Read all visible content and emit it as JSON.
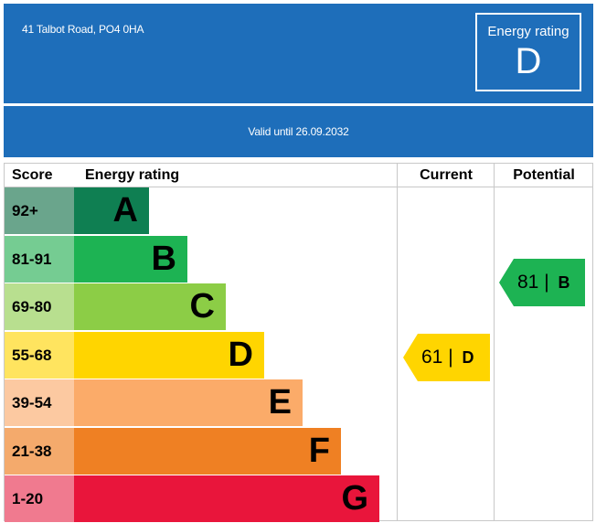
{
  "header": {
    "address": "41 Talbot Road, PO4 0HA",
    "rating_label": "Energy rating",
    "rating_value": "D",
    "valid_text": "Valid until 26.09.2032"
  },
  "table": {
    "col_score": "Score",
    "col_rating": "Energy rating",
    "col_current": "Current",
    "col_potential": "Potential"
  },
  "bands": [
    {
      "score": "92+",
      "letter": "A",
      "color": "#0f7f52",
      "score_bg": "#6aa58c"
    },
    {
      "score": "81-91",
      "letter": "B",
      "color": "#1db353",
      "score_bg": "#75cc92"
    },
    {
      "score": "69-80",
      "letter": "C",
      "color": "#8ccd46",
      "score_bg": "#b8df8f"
    },
    {
      "score": "55-68",
      "letter": "D",
      "color": "#ffd500",
      "score_bg": "#ffe45f"
    },
    {
      "score": "39-54",
      "letter": "E",
      "color": "#fbab69",
      "score_bg": "#fcc9a1"
    },
    {
      "score": "21-38",
      "letter": "F",
      "color": "#ef8023",
      "score_bg": "#f4aa6c"
    },
    {
      "score": "1-20",
      "letter": "G",
      "color": "#e9153b",
      "score_bg": "#f07a8f"
    }
  ],
  "current": {
    "score": "61 |",
    "letter": "D",
    "color": "#ffd500"
  },
  "potential": {
    "score": "81 |",
    "letter": "B",
    "color": "#1db353"
  }
}
